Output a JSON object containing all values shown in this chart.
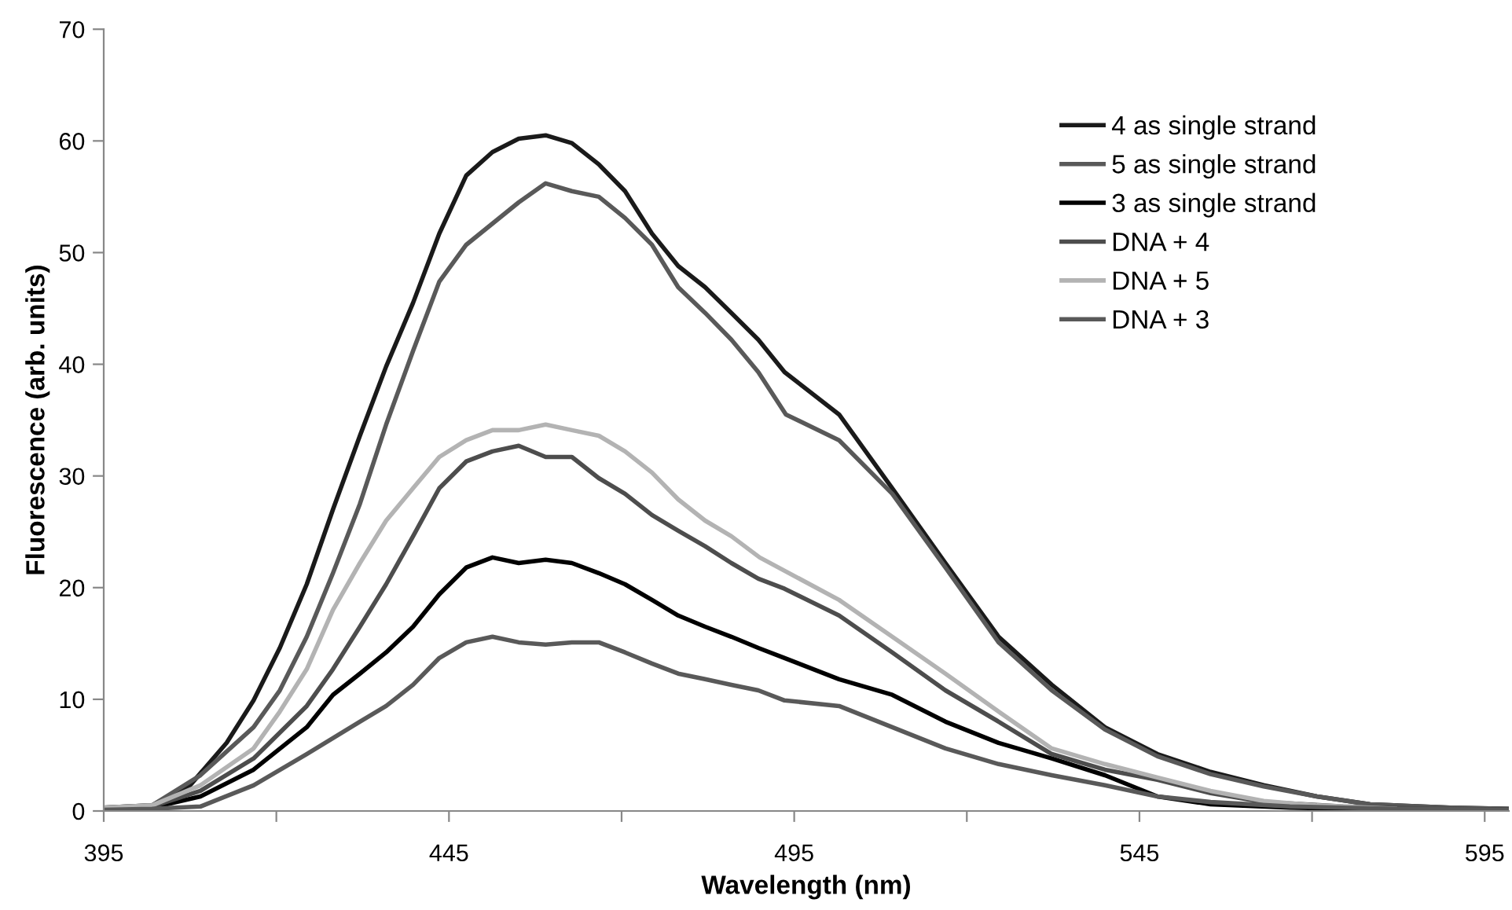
{
  "chart_data": {
    "type": "line",
    "xlabel": "Wavelength (nm)",
    "ylabel": "Fluorescence (arb. units)",
    "xlim": [
      395,
      598.5
    ],
    "ylim": [
      0,
      70
    ],
    "xticks": [
      395,
      {
        "value": 420,
        "label": null
      },
      445,
      {
        "value": 470,
        "label": null
      },
      495,
      {
        "value": 520,
        "label": null
      },
      545,
      {
        "value": 570,
        "label": null
      },
      595
    ],
    "yticks": [
      0,
      10,
      20,
      30,
      40,
      50,
      60,
      70
    ],
    "grid": false,
    "legend": "top right",
    "marker": "none",
    "line_style": "solid",
    "series": [
      {
        "name": "4 as single strand",
        "color": "#1a1a1a",
        "x": [
          395,
          402,
          407.5,
          412.8,
          416.7,
          420.5,
          424.4,
          428.2,
          432.1,
          435.9,
          439.8,
          443.6,
          447.5,
          451.3,
          455.1,
          459,
          462.8,
          466.7,
          470.5,
          474.4,
          478.2,
          482.1,
          485.9,
          489.8,
          493.6,
          501.5,
          509.2,
          516.9,
          524.6,
          532.3,
          540,
          547.6,
          555.3,
          563,
          570.7,
          578.4,
          590,
          598.5
        ],
        "values": [
          0.3,
          0.5,
          2.3,
          6.1,
          9.9,
          14.6,
          20.3,
          27.0,
          33.6,
          39.8,
          45.5,
          51.7,
          56.9,
          59.0,
          60.2,
          60.5,
          59.8,
          57.9,
          55.5,
          51.7,
          48.8,
          46.9,
          44.6,
          42.2,
          39.3,
          35.5,
          28.9,
          22.2,
          15.6,
          11.3,
          7.5,
          5.1,
          3.5,
          2.3,
          1.3,
          0.6,
          0.3,
          0.2
        ]
      },
      {
        "name": "5 as single strand",
        "color": "#595959",
        "x": [
          395,
          402,
          409,
          416.7,
          420.5,
          424.4,
          428.2,
          432.1,
          435.9,
          439.8,
          443.6,
          447.5,
          451.3,
          455.1,
          459,
          462.8,
          466.7,
          470.5,
          474.4,
          478.2,
          482.1,
          485.9,
          489.8,
          493.8,
          501.5,
          509.2,
          516.9,
          524.6,
          532.3,
          540,
          547.6,
          555.3,
          563,
          570.7,
          578.4,
          590,
          598.5
        ],
        "values": [
          0.3,
          0.5,
          3.2,
          7.5,
          10.8,
          15.6,
          21.3,
          27.5,
          34.6,
          41.2,
          47.4,
          50.7,
          52.6,
          54.5,
          56.2,
          55.5,
          55.0,
          53.1,
          50.7,
          46.9,
          44.6,
          42.2,
          39.3,
          35.5,
          33.2,
          28.4,
          21.8,
          15.1,
          10.8,
          7.3,
          4.9,
          3.3,
          2.2,
          1.3,
          0.6,
          0.3,
          0.2
        ]
      },
      {
        "name": "3 as single strand",
        "color": "#000000",
        "x": [
          395,
          402,
          409,
          416.7,
          424.4,
          428.2,
          432.1,
          435.9,
          439.8,
          443.6,
          447.5,
          451.3,
          455.1,
          459,
          462.8,
          466.7,
          470.5,
          474.4,
          478.2,
          482.1,
          485.9,
          489.8,
          493.6,
          501.5,
          509.2,
          516.9,
          524.6,
          532.3,
          540,
          547.6,
          555.3,
          566.8,
          582,
          598.5
        ],
        "values": [
          0.2,
          0.3,
          1.3,
          3.7,
          7.5,
          10.4,
          12.3,
          14.2,
          16.5,
          19.4,
          21.8,
          22.7,
          22.2,
          22.5,
          22.2,
          21.3,
          20.3,
          18.9,
          17.5,
          16.5,
          15.6,
          14.6,
          13.7,
          11.8,
          10.4,
          8.0,
          6.1,
          4.7,
          3.2,
          1.3,
          0.6,
          0.3,
          0.1,
          0.1
        ]
      },
      {
        "name": "DNA + 4",
        "color": "#4d4d4d",
        "x": [
          395,
          402,
          409,
          416.7,
          424.4,
          428.2,
          432.1,
          435.9,
          439.8,
          443.6,
          447.5,
          451.3,
          455.1,
          459,
          462.8,
          466.7,
          470.5,
          474.4,
          478.2,
          482.1,
          485.9,
          489.8,
          493.6,
          501.5,
          509.2,
          516.9,
          524.6,
          532.3,
          540,
          547.6,
          555.3,
          563,
          574.5,
          590,
          598.5
        ],
        "values": [
          0.2,
          0.4,
          1.8,
          4.7,
          9.4,
          12.7,
          16.5,
          20.3,
          24.6,
          28.9,
          31.3,
          32.2,
          32.7,
          31.7,
          31.7,
          29.8,
          28.4,
          26.5,
          25.1,
          23.7,
          22.2,
          20.8,
          19.9,
          17.5,
          14.2,
          10.8,
          8.0,
          5.1,
          3.7,
          2.8,
          1.6,
          0.8,
          0.4,
          0.2,
          0.1
        ]
      },
      {
        "name": "DNA + 5",
        "color": "#b3b3b3",
        "x": [
          395,
          402,
          409,
          416.7,
          420.5,
          424.4,
          428.2,
          432.1,
          435.9,
          439.8,
          443.6,
          447.5,
          451.3,
          455.1,
          459,
          462.8,
          466.7,
          470.5,
          474.4,
          478.2,
          482.1,
          485.9,
          490,
          501.5,
          509.2,
          516.9,
          524.6,
          532.3,
          540,
          547.6,
          555.3,
          563,
          570.7,
          582
        ],
        "values": [
          0.3,
          0.5,
          2.3,
          5.6,
          8.9,
          12.7,
          18.0,
          22.2,
          26.0,
          28.9,
          31.7,
          33.2,
          34.1,
          34.1,
          34.6,
          34.1,
          33.6,
          32.2,
          30.3,
          27.9,
          26.0,
          24.6,
          22.7,
          18.9,
          15.6,
          12.3,
          8.9,
          5.6,
          4.2,
          3.0,
          1.8,
          0.9,
          0.5,
          0.2
        ]
      },
      {
        "name": "DNA + 3",
        "color": "#595959",
        "x": [
          395,
          402,
          409,
          416.7,
          424.4,
          432.1,
          435.9,
          439.8,
          443.6,
          447.5,
          451.3,
          455.1,
          459,
          462.8,
          466.7,
          470.5,
          474.4,
          478.2,
          482.1,
          485.9,
          489.8,
          493.6,
          501.5,
          509.2,
          516.9,
          524.6,
          532.3,
          540,
          547.6,
          555.3,
          566.8,
          582,
          598.5
        ],
        "values": [
          0.1,
          0.2,
          0.4,
          2.3,
          5.1,
          8.0,
          9.4,
          11.3,
          13.7,
          15.1,
          15.6,
          15.1,
          14.9,
          15.1,
          15.1,
          14.2,
          13.2,
          12.3,
          11.8,
          11.3,
          10.8,
          9.9,
          9.4,
          7.5,
          5.6,
          4.2,
          3.2,
          2.3,
          1.3,
          0.8,
          0.4,
          0.2,
          0.1
        ]
      }
    ]
  }
}
